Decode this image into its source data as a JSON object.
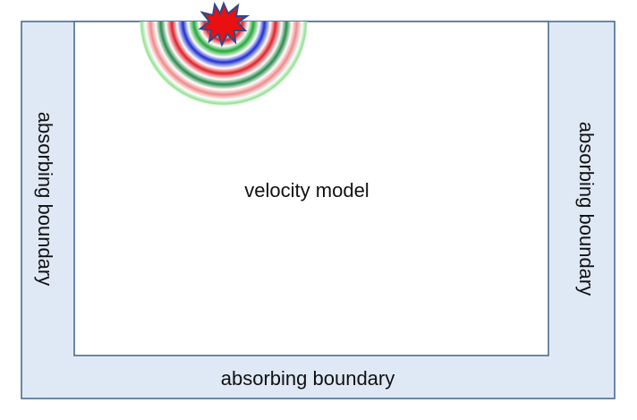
{
  "diagram": {
    "labels": {
      "bottom_boundary": "absorbing boundary",
      "left_boundary": "absorbing boundary",
      "right_boundary": "absorbing boundary",
      "model": "velocity model"
    },
    "colors": {
      "boundary_fill": "#dfe9f6",
      "border": "#4a6e93",
      "model_fill": "#ffffff",
      "wave_blue": "#1f2fd0",
      "wave_green": "#22a838",
      "wave_red": "#e0202a",
      "source_fill": "#e81010",
      "source_outline": "#2e4a8a"
    },
    "icons": {
      "source": "star-burst-icon",
      "wavefront": "semicircular-wavefront-icon"
    }
  }
}
